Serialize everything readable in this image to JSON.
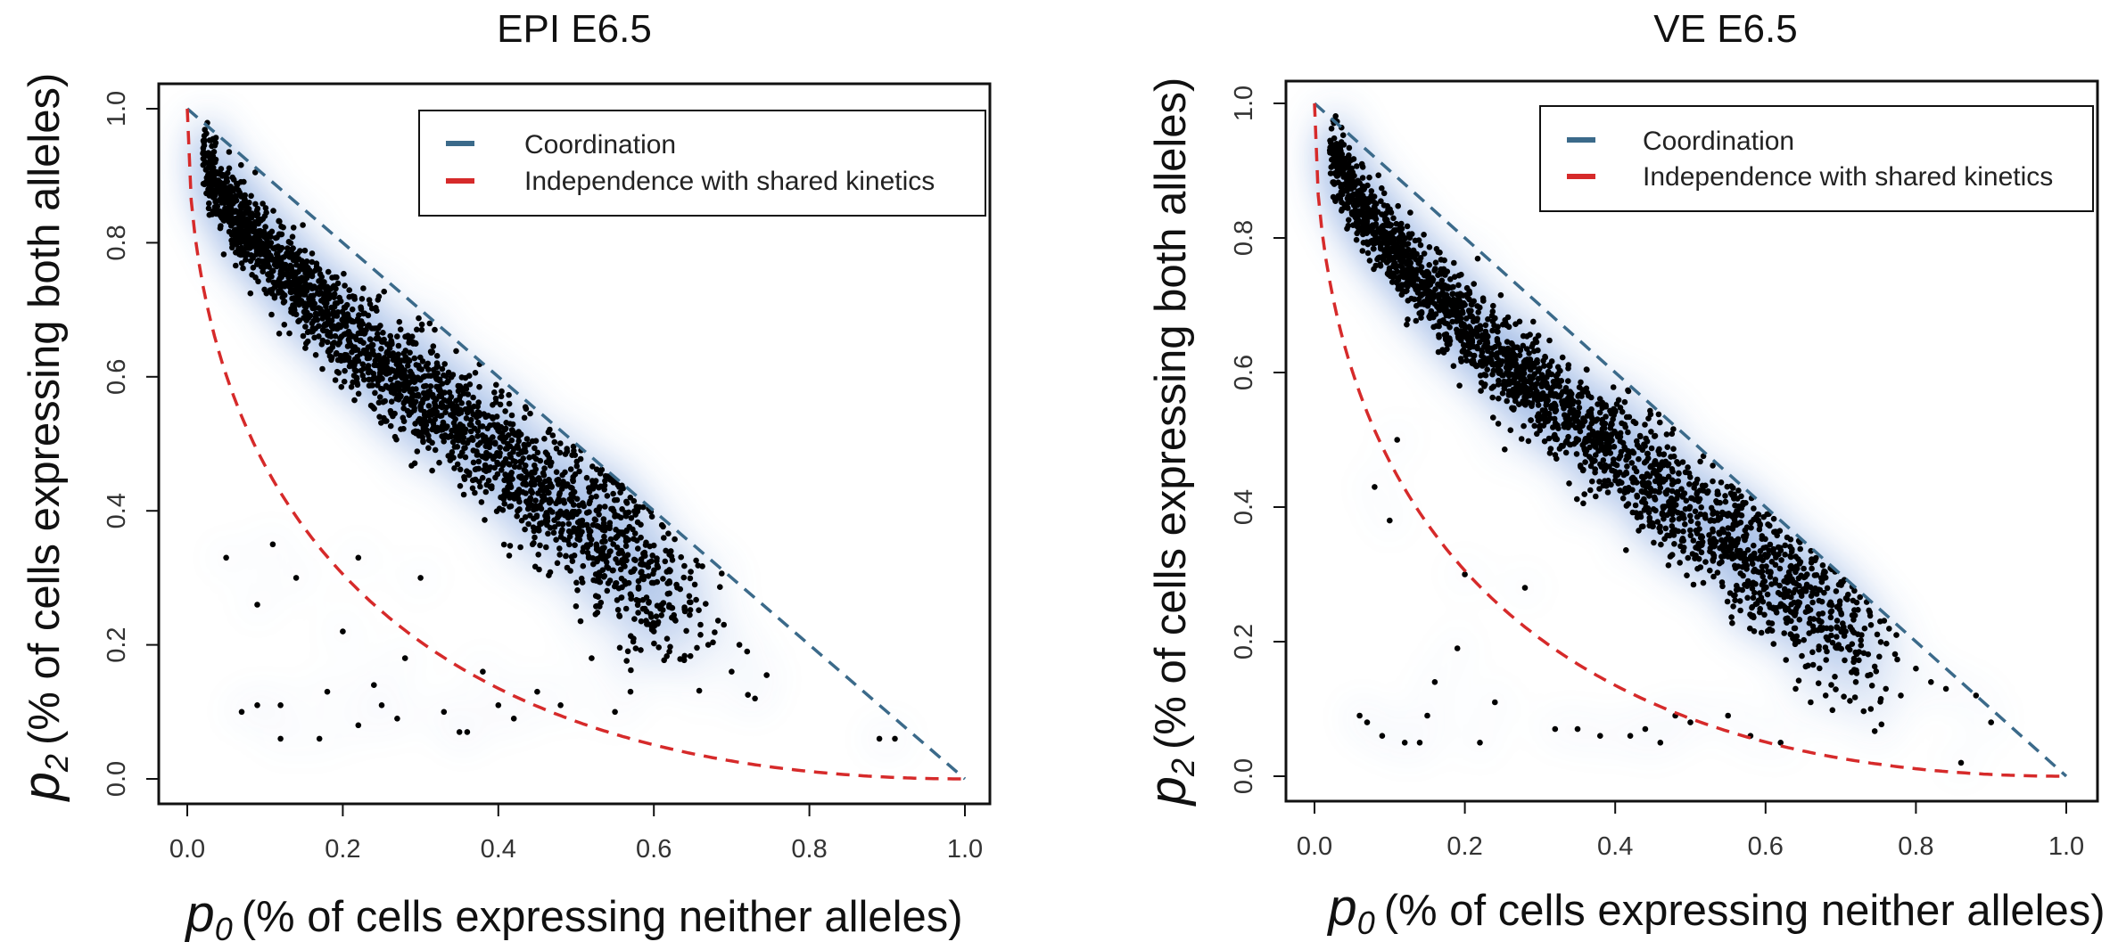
{
  "chart_data": [
    {
      "type": "scatter",
      "title": "EPI E6.5",
      "xlabel": {
        "var": "p",
        "sub": "0",
        "text": "(% of cells expressing neither alleles)"
      },
      "ylabel": {
        "var": "p",
        "sub": "2",
        "text": "(% of cells expressing both alleles)"
      },
      "xlim": [
        0,
        1
      ],
      "ylim": [
        0,
        1
      ],
      "xticks": [
        "0.0",
        "0.2",
        "0.4",
        "0.6",
        "0.8",
        "1.0"
      ],
      "yticks": [
        "0.0",
        "0.2",
        "0.4",
        "0.6",
        "0.8",
        "1.0"
      ],
      "grid": false,
      "density_background": true,
      "legend": {
        "position": "top-right",
        "entries": [
          {
            "label": "Coordination",
            "color": "#3b6a8a",
            "style": "dashed"
          },
          {
            "label": "Independence with shared kinetics",
            "color": "#d62a2a",
            "style": "dashed"
          }
        ]
      },
      "series": [
        {
          "curve": "coordination",
          "equation": "p2 = 1 - p0"
        },
        {
          "curve": "independence",
          "equation": "p2 = (1 - sqrt(p0))^2"
        }
      ],
      "point_color": "#000000",
      "cloud": {
        "n": 2300,
        "seed": 11,
        "center_x_range": [
          0.03,
          0.62
        ],
        "spread": 0.05
      },
      "outliers": [
        [
          0.05,
          0.33
        ],
        [
          0.07,
          0.1
        ],
        [
          0.09,
          0.11
        ],
        [
          0.09,
          0.26
        ],
        [
          0.11,
          0.35
        ],
        [
          0.12,
          0.06
        ],
        [
          0.12,
          0.11
        ],
        [
          0.14,
          0.3
        ],
        [
          0.17,
          0.06
        ],
        [
          0.18,
          0.13
        ],
        [
          0.2,
          0.22
        ],
        [
          0.22,
          0.08
        ],
        [
          0.22,
          0.33
        ],
        [
          0.24,
          0.14
        ],
        [
          0.25,
          0.11
        ],
        [
          0.27,
          0.09
        ],
        [
          0.28,
          0.18
        ],
        [
          0.3,
          0.3
        ],
        [
          0.33,
          0.1
        ],
        [
          0.35,
          0.07
        ],
        [
          0.36,
          0.07
        ],
        [
          0.38,
          0.16
        ],
        [
          0.4,
          0.11
        ],
        [
          0.42,
          0.09
        ],
        [
          0.45,
          0.13
        ],
        [
          0.48,
          0.11
        ],
        [
          0.52,
          0.18
        ],
        [
          0.55,
          0.1
        ],
        [
          0.57,
          0.13
        ],
        [
          0.6,
          0.22
        ],
        [
          0.62,
          0.19
        ],
        [
          0.64,
          0.25
        ],
        [
          0.66,
          0.23
        ],
        [
          0.67,
          0.2
        ],
        [
          0.69,
          0.23
        ],
        [
          0.7,
          0.16
        ],
        [
          0.71,
          0.2
        ],
        [
          0.72,
          0.19
        ],
        [
          0.73,
          0.12
        ],
        [
          0.89,
          0.06
        ],
        [
          0.91,
          0.06
        ]
      ]
    },
    {
      "type": "scatter",
      "title": "VE E6.5",
      "xlabel": {
        "var": "p",
        "sub": "0",
        "text": "(% of cells expressing neither alleles)"
      },
      "ylabel": {
        "var": "p",
        "sub": "2",
        "text": "(% of cells expressing both alleles)"
      },
      "xlim": [
        0,
        1
      ],
      "ylim": [
        0,
        1
      ],
      "xticks": [
        "0.0",
        "0.2",
        "0.4",
        "0.6",
        "0.8",
        "1.0"
      ],
      "yticks": [
        "0.0",
        "0.2",
        "0.4",
        "0.6",
        "0.8",
        "1.0"
      ],
      "grid": false,
      "density_background": true,
      "legend": {
        "position": "top-right",
        "entries": [
          {
            "label": "Coordination",
            "color": "#3b6a8a",
            "style": "dashed"
          },
          {
            "label": "Independence with shared kinetics",
            "color": "#d62a2a",
            "style": "dashed"
          }
        ]
      },
      "series": [
        {
          "curve": "coordination",
          "equation": "p2 = 1 - p0"
        },
        {
          "curve": "independence",
          "equation": "p2 = (1 - sqrt(p0))^2"
        }
      ],
      "point_color": "#000000",
      "cloud": {
        "n": 2400,
        "seed": 23,
        "center_x_range": [
          0.03,
          0.72
        ],
        "spread": 0.045
      },
      "outliers": [
        [
          0.06,
          0.09
        ],
        [
          0.07,
          0.08
        ],
        [
          0.08,
          0.43
        ],
        [
          0.09,
          0.06
        ],
        [
          0.1,
          0.38
        ],
        [
          0.11,
          0.5
        ],
        [
          0.12,
          0.05
        ],
        [
          0.14,
          0.05
        ],
        [
          0.15,
          0.09
        ],
        [
          0.16,
          0.14
        ],
        [
          0.19,
          0.19
        ],
        [
          0.2,
          0.3
        ],
        [
          0.22,
          0.05
        ],
        [
          0.24,
          0.11
        ],
        [
          0.28,
          0.28
        ],
        [
          0.32,
          0.07
        ],
        [
          0.35,
          0.07
        ],
        [
          0.38,
          0.06
        ],
        [
          0.42,
          0.06
        ],
        [
          0.44,
          0.07
        ],
        [
          0.46,
          0.05
        ],
        [
          0.48,
          0.09
        ],
        [
          0.5,
          0.08
        ],
        [
          0.55,
          0.09
        ],
        [
          0.58,
          0.06
        ],
        [
          0.62,
          0.05
        ],
        [
          0.64,
          0.13
        ],
        [
          0.66,
          0.11
        ],
        [
          0.68,
          0.12
        ],
        [
          0.72,
          0.14
        ],
        [
          0.74,
          0.1
        ],
        [
          0.76,
          0.13
        ],
        [
          0.78,
          0.12
        ],
        [
          0.8,
          0.16
        ],
        [
          0.82,
          0.14
        ],
        [
          0.84,
          0.13
        ],
        [
          0.86,
          0.02
        ],
        [
          0.88,
          0.12
        ],
        [
          0.9,
          0.08
        ]
      ]
    }
  ]
}
